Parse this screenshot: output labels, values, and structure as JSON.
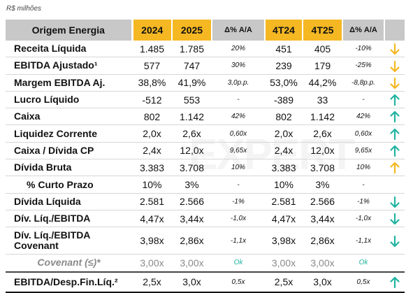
{
  "unit_label": "R$ milhões",
  "watermark": "EXPERT",
  "colors": {
    "header_year": "#f5b823",
    "header_gray": "#c8c8c8",
    "arrow_up": "#21b3a0",
    "arrow_down": "#f5b823",
    "ok": "#21b3a0"
  },
  "header": [
    "Origem Energia",
    "2024",
    "2025",
    "Δ% A/A",
    "4T24",
    "4T25",
    "Δ% A/A"
  ],
  "rows": [
    {
      "label": "Receita Líquida",
      "v2024": "1.485",
      "v2025": "1.785",
      "dyy": "20%",
      "v4t24": "451",
      "v4t25": "405",
      "dq": "-10%",
      "arrow": "down"
    },
    {
      "label": "EBITDA Ajustado¹",
      "v2024": "577",
      "v2025": "747",
      "dyy": "30%",
      "v4t24": "239",
      "v4t25": "179",
      "dq": "-25%",
      "arrow": "down"
    },
    {
      "label": "Margem EBITDA Aj.",
      "v2024": "38,8%",
      "v2025": "41,9%",
      "dyy": "3,0p.p.",
      "v4t24": "53,0%",
      "v4t25": "44,2%",
      "dq": "-8,8p.p.",
      "arrow": "down"
    },
    {
      "label": "Lucro Líquido",
      "v2024": "-512",
      "v2025": "553",
      "dyy": "-",
      "v4t24": "-389",
      "v4t25": "33",
      "dq": "-",
      "arrow": "up"
    },
    {
      "label": "Caixa",
      "v2024": "802",
      "v2025": "1.142",
      "dyy": "42%",
      "v4t24": "802",
      "v4t25": "1.142",
      "dq": "42%",
      "arrow": "up"
    },
    {
      "label": "Liquidez Corrente",
      "v2024": "2,0x",
      "v2025": "2,6x",
      "dyy": "0,60x",
      "v4t24": "2,0x",
      "v4t25": "2,6x",
      "dq": "0,60x",
      "arrow": "up"
    },
    {
      "label": "Caixa / Dívida CP",
      "v2024": "2,4x",
      "v2025": "12,0x",
      "dyy": "9,65x",
      "v4t24": "2,4x",
      "v4t25": "12,0x",
      "dq": "9,65x",
      "arrow": "up"
    },
    {
      "label": "Dívida Bruta",
      "v2024": "3.383",
      "v2025": "3.708",
      "dyy": "10%",
      "v4t24": "3.383",
      "v4t25": "3.708",
      "dq": "10%",
      "arrow": "up-yellow"
    },
    {
      "label": "% Curto Prazo",
      "v2024": "10%",
      "v2025": "3%",
      "dyy": "-",
      "v4t24": "10%",
      "v4t25": "3%",
      "dq": "-",
      "arrow": ""
    },
    {
      "label": "Dívida Líquida",
      "v2024": "2.581",
      "v2025": "2.566",
      "dyy": "-1%",
      "v4t24": "2.581",
      "v4t25": "2.566",
      "dq": "-1%",
      "arrow": "down-teal"
    },
    {
      "label": "Dív. Líq./EBITDA",
      "v2024": "4,47x",
      "v2025": "3,44x",
      "dyy": "-1,0x",
      "v4t24": "4,47x",
      "v4t25": "3,44x",
      "dq": "-1,0x",
      "arrow": "down-teal"
    },
    {
      "label": "Dív. Líq./EBITDA Covenant",
      "v2024": "3,98x",
      "v2025": "2,86x",
      "dyy": "-1,1x",
      "v4t24": "3,98x",
      "v4t25": "2,86x",
      "dq": "-1,1x",
      "arrow": "down-teal"
    },
    {
      "label": "Covenant (≤)*",
      "v2024": "3,00x",
      "v2025": "3,00x",
      "dyy": "Ok",
      "v4t24": "3,00x",
      "v4t25": "3,00x",
      "dq": "Ok",
      "arrow": ""
    },
    {
      "label": "EBITDA/Desp.Fin.Líq.²",
      "v2024": "2,5x",
      "v2025": "3,0x",
      "dyy": "0,5x",
      "v4t24": "2,5x",
      "v4t25": "3,0x",
      "dq": "0,5x",
      "arrow": "up"
    }
  ]
}
